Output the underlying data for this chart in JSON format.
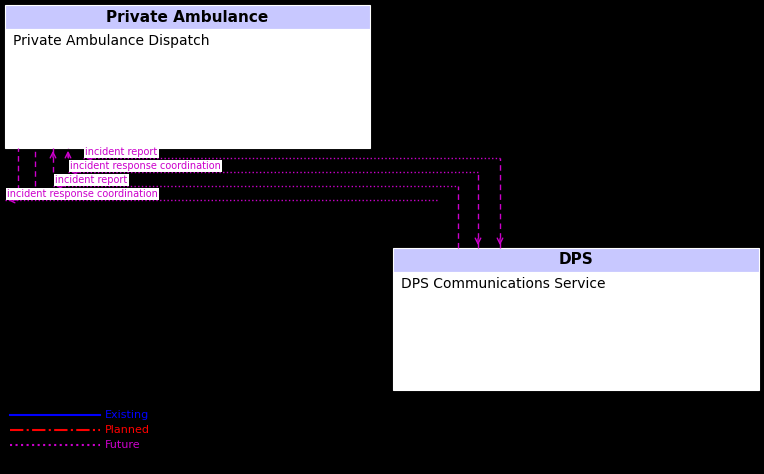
{
  "bg_color": "#000000",
  "box1_title": "Private Ambulance",
  "box1_title_bg": "#c8c8ff",
  "box1_label": "Private Ambulance Dispatch",
  "box1_bg": "#ffffff",
  "box2_title": "DPS",
  "box2_title_bg": "#c8c8ff",
  "box2_label": "DPS Communications Service",
  "box2_bg": "#ffffff",
  "arrow_color": "#cc00cc",
  "labels": [
    "incident report",
    "incident response coordination",
    "incident report",
    "incident response coordination"
  ],
  "legend_existing_color": "#0000ff",
  "legend_planned_color": "#ff0000",
  "legend_future_color": "#cc00cc"
}
